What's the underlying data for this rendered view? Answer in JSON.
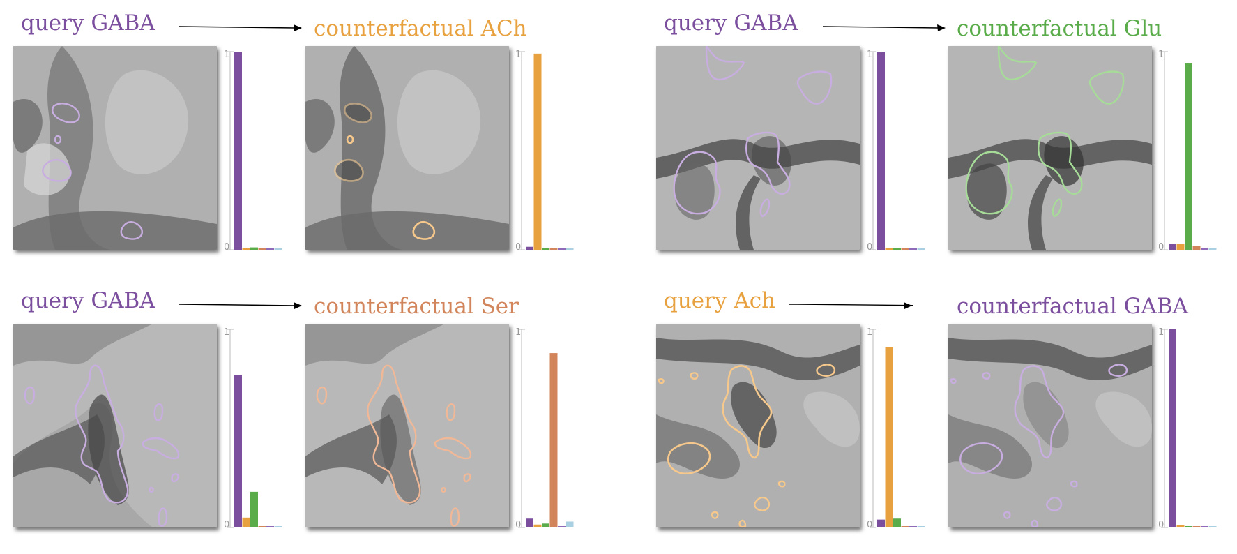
{
  "colors": {
    "GABA": "#7b4f9e",
    "ACh": "#e8a13f",
    "Glu": "#5aab4a",
    "Ser": "#d2855a",
    "other1": "#8e6ab8",
    "other2": "#a9cfe3",
    "GABA_contour": "#c8aee0",
    "ACh_contour": "#f6c88b",
    "Glu_contour": "#a6dc98",
    "Ser_contour": "#f0b897"
  },
  "panels": [
    {
      "query_label": "query GABA",
      "query_color": "#7b4f9e",
      "cf_label": "counterfactual ACh",
      "cf_color": "#e8a13f",
      "axis": {
        "top": "1",
        "bottom": "0"
      },
      "query_bars": [
        1.0,
        0.0,
        0.012,
        0.005,
        0.005,
        0.005
      ],
      "cf_bars": [
        0.015,
        0.99,
        0.01,
        0.005,
        0.004,
        0.004
      ]
    },
    {
      "query_label": "query GABA",
      "query_color": "#7b4f9e",
      "cf_label": "counterfactual Glu",
      "cf_color": "#5aab4a",
      "axis": {
        "top": "1",
        "bottom": "0"
      },
      "query_bars": [
        1.0,
        0.004,
        0.004,
        0.004,
        0.004,
        0.004
      ],
      "cf_bars": [
        0.03,
        0.03,
        0.94,
        0.02,
        0.004,
        0.01
      ]
    },
    {
      "query_label": "query GABA",
      "query_color": "#7b4f9e",
      "cf_label": "counterfactual Ser",
      "cf_color": "#d2855a",
      "axis": {
        "top": "1",
        "bottom": "0"
      },
      "query_bars": [
        0.77,
        0.05,
        0.18,
        0.004,
        0.004,
        0.004
      ],
      "cf_bars": [
        0.045,
        0.015,
        0.02,
        0.88,
        0.004,
        0.03
      ]
    },
    {
      "query_label": "query Ach",
      "query_color": "#e8a13f",
      "cf_label": "counterfactual GABA",
      "cf_color": "#7b4f9e",
      "axis": {
        "top": "1",
        "bottom": "0"
      },
      "query_bars": [
        0.04,
        0.91,
        0.045,
        0.004,
        0.004,
        0.004
      ],
      "cf_bars": [
        1.0,
        0.012,
        0.005,
        0.004,
        0.004,
        0.004
      ]
    }
  ]
}
